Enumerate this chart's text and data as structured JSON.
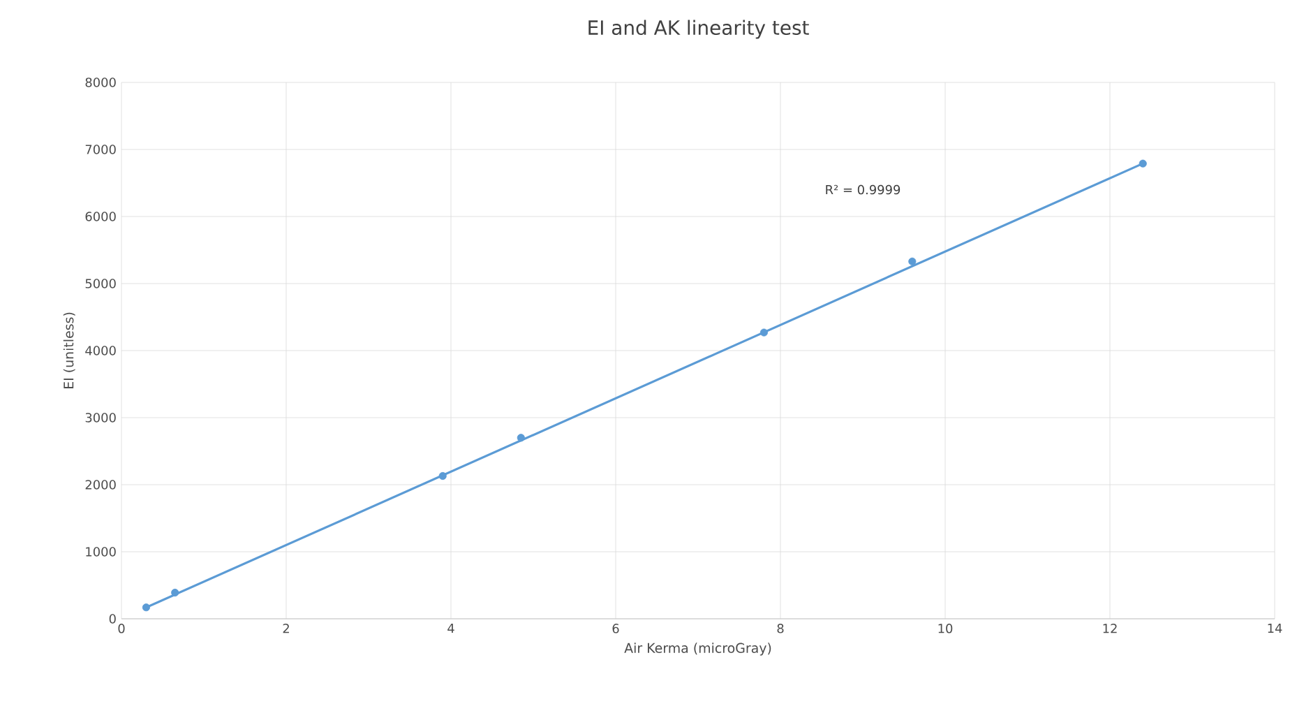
{
  "chart_data": {
    "type": "scatter",
    "title": "EI and AK linearity test",
    "xlabel": "Air Kerma (microGray)",
    "ylabel": "EI (unitless)",
    "xlim": [
      0,
      14
    ],
    "xticks": [
      0,
      2,
      4,
      6,
      8,
      10,
      12,
      14
    ],
    "ylim": [
      0,
      8000
    ],
    "yticks": [
      0,
      1000,
      2000,
      3000,
      4000,
      5000,
      6000,
      7000,
      8000
    ],
    "grid": true,
    "marker": "circle",
    "annotations": [
      "R² = 0.9999"
    ],
    "series": [
      {
        "color": "#5b9bd5",
        "x": [
          0.3,
          0.65,
          3.9,
          4.85,
          7.8,
          9.6,
          12.4
        ],
        "values": [
          170,
          390,
          2130,
          2700,
          4270,
          5330,
          6790
        ]
      },
      {
        "type": "line",
        "color": "#5b9bd5",
        "x": [
          0.3,
          12.4
        ],
        "values": [
          170,
          6790
        ],
        "marker": "none"
      }
    ]
  }
}
